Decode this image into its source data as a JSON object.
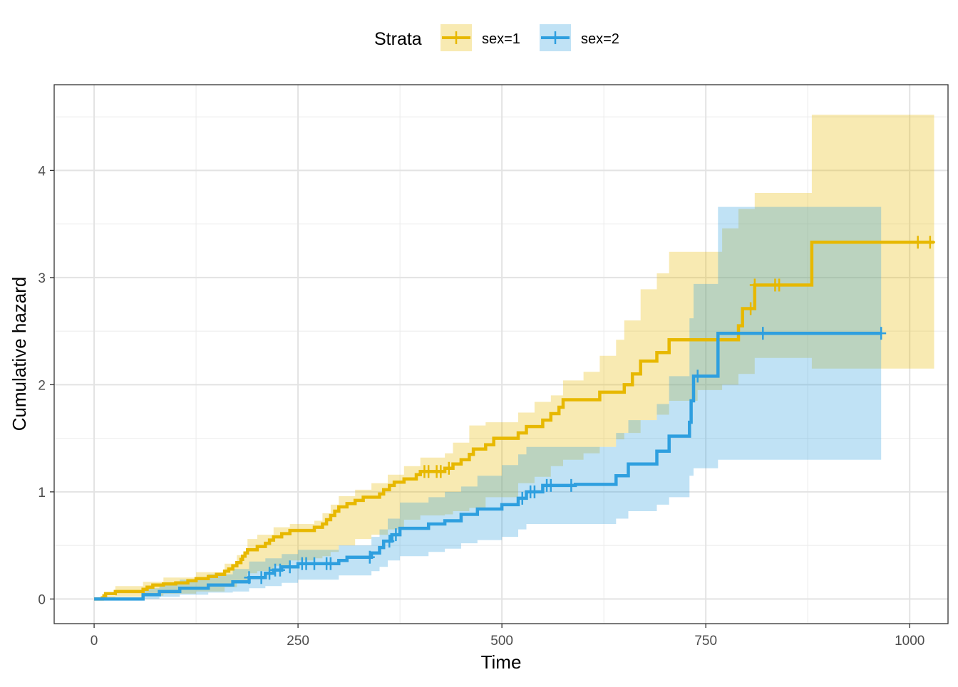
{
  "chart_data": {
    "type": "line",
    "subtype": "step-with-confidence-bands",
    "title": "",
    "xlabel": "Time",
    "ylabel": "Cumulative hazard",
    "xlim": [
      -49,
      1047
    ],
    "ylim": [
      -0.23,
      4.8
    ],
    "x_ticks": [
      0,
      250,
      500,
      750,
      1000
    ],
    "y_ticks": [
      0,
      1,
      2,
      3,
      4
    ],
    "x_tick_labels": [
      "0",
      "250",
      "500",
      "750",
      "1000"
    ],
    "y_tick_labels": [
      "0",
      "1",
      "2",
      "3",
      "4"
    ],
    "grid": true,
    "legend": {
      "title": "Strata",
      "position": "top",
      "entries": [
        "sex=1",
        "sex=2"
      ]
    },
    "series": [
      {
        "name": "sex=1",
        "color": "#E7B800",
        "band_color": "#E7B800",
        "steps": [
          [
            0,
            0
          ],
          [
            10,
            0.01
          ],
          [
            12,
            0.03
          ],
          [
            14,
            0.05
          ],
          [
            26,
            0.07
          ],
          [
            60,
            0.09
          ],
          [
            65,
            0.11
          ],
          [
            72,
            0.13
          ],
          [
            85,
            0.14
          ],
          [
            100,
            0.15
          ],
          [
            115,
            0.17
          ],
          [
            125,
            0.19
          ],
          [
            140,
            0.21
          ],
          [
            150,
            0.23
          ],
          [
            160,
            0.26
          ],
          [
            165,
            0.28
          ],
          [
            170,
            0.31
          ],
          [
            175,
            0.34
          ],
          [
            180,
            0.37
          ],
          [
            182,
            0.4
          ],
          [
            185,
            0.43
          ],
          [
            188,
            0.46
          ],
          [
            200,
            0.49
          ],
          [
            210,
            0.52
          ],
          [
            215,
            0.55
          ],
          [
            220,
            0.58
          ],
          [
            230,
            0.61
          ],
          [
            240,
            0.64
          ],
          [
            270,
            0.67
          ],
          [
            280,
            0.7
          ],
          [
            285,
            0.74
          ],
          [
            290,
            0.78
          ],
          [
            295,
            0.82
          ],
          [
            300,
            0.86
          ],
          [
            310,
            0.89
          ],
          [
            320,
            0.92
          ],
          [
            330,
            0.95
          ],
          [
            350,
            0.98
          ],
          [
            355,
            1.02
          ],
          [
            362,
            1.06
          ],
          [
            368,
            1.09
          ],
          [
            380,
            1.12
          ],
          [
            395,
            1.16
          ],
          [
            400,
            1.19
          ],
          [
            430,
            1.22
          ],
          [
            440,
            1.26
          ],
          [
            450,
            1.3
          ],
          [
            460,
            1.35
          ],
          [
            465,
            1.4
          ],
          [
            480,
            1.44
          ],
          [
            490,
            1.5
          ],
          [
            520,
            1.55
          ],
          [
            530,
            1.61
          ],
          [
            550,
            1.67
          ],
          [
            560,
            1.73
          ],
          [
            570,
            1.79
          ],
          [
            575,
            1.86
          ],
          [
            620,
            1.93
          ],
          [
            650,
            2.0
          ],
          [
            660,
            2.1
          ],
          [
            670,
            2.22
          ],
          [
            690,
            2.3
          ],
          [
            705,
            2.42
          ],
          [
            790,
            2.55
          ],
          [
            795,
            2.71
          ],
          [
            810,
            2.93
          ],
          [
            880,
            3.33
          ],
          [
            1030,
            3.33
          ]
        ],
        "band_steps": [
          [
            0,
            0,
            0
          ],
          [
            10,
            -0.01,
            0.03
          ],
          [
            26,
            0.02,
            0.12
          ],
          [
            60,
            0.03,
            0.16
          ],
          [
            85,
            0.05,
            0.2
          ],
          [
            125,
            0.07,
            0.25
          ],
          [
            160,
            0.11,
            0.33
          ],
          [
            175,
            0.15,
            0.41
          ],
          [
            188,
            0.24,
            0.56
          ],
          [
            200,
            0.26,
            0.6
          ],
          [
            220,
            0.31,
            0.67
          ],
          [
            240,
            0.36,
            0.7
          ],
          [
            270,
            0.38,
            0.73
          ],
          [
            280,
            0.4,
            0.8
          ],
          [
            290,
            0.44,
            0.88
          ],
          [
            300,
            0.5,
            0.96
          ],
          [
            320,
            0.56,
            1.02
          ],
          [
            340,
            0.6,
            1.08
          ],
          [
            360,
            0.65,
            1.16
          ],
          [
            380,
            0.74,
            1.24
          ],
          [
            400,
            0.78,
            1.32
          ],
          [
            430,
            0.79,
            1.36
          ],
          [
            440,
            0.82,
            1.46
          ],
          [
            460,
            0.85,
            1.62
          ],
          [
            480,
            0.95,
            1.65
          ],
          [
            520,
            1.08,
            1.74
          ],
          [
            540,
            1.14,
            1.84
          ],
          [
            560,
            1.24,
            1.9
          ],
          [
            575,
            1.3,
            2.04
          ],
          [
            600,
            1.36,
            2.12
          ],
          [
            620,
            1.42,
            2.27
          ],
          [
            640,
            1.49,
            2.42
          ],
          [
            650,
            1.55,
            2.6
          ],
          [
            670,
            1.67,
            2.89
          ],
          [
            690,
            1.72,
            3.04
          ],
          [
            705,
            1.85,
            3.24
          ],
          [
            740,
            1.95,
            3.24
          ],
          [
            770,
            2.0,
            3.46
          ],
          [
            790,
            2.1,
            3.64
          ],
          [
            810,
            2.25,
            3.79
          ],
          [
            880,
            2.15,
            4.52
          ],
          [
            1030,
            2.15,
            4.52
          ]
        ],
        "censor_times": [
          405,
          410,
          420,
          425,
          435,
          805,
          810,
          835,
          840,
          1010,
          1025
        ]
      },
      {
        "name": "sex=2",
        "color": "#2E9FDF",
        "band_color": "#2E9FDF",
        "steps": [
          [
            0,
            0
          ],
          [
            60,
            0.04
          ],
          [
            80,
            0.07
          ],
          [
            105,
            0.1
          ],
          [
            140,
            0.13
          ],
          [
            170,
            0.16
          ],
          [
            190,
            0.2
          ],
          [
            210,
            0.24
          ],
          [
            220,
            0.27
          ],
          [
            230,
            0.3
          ],
          [
            250,
            0.33
          ],
          [
            300,
            0.36
          ],
          [
            310,
            0.39
          ],
          [
            340,
            0.43
          ],
          [
            350,
            0.48
          ],
          [
            355,
            0.54
          ],
          [
            365,
            0.6
          ],
          [
            375,
            0.66
          ],
          [
            410,
            0.7
          ],
          [
            430,
            0.73
          ],
          [
            450,
            0.79
          ],
          [
            470,
            0.84
          ],
          [
            500,
            0.88
          ],
          [
            520,
            0.94
          ],
          [
            530,
            1.0
          ],
          [
            550,
            1.06
          ],
          [
            590,
            1.07
          ],
          [
            640,
            1.15
          ],
          [
            655,
            1.26
          ],
          [
            690,
            1.38
          ],
          [
            705,
            1.52
          ],
          [
            730,
            1.65
          ],
          [
            732,
            1.85
          ],
          [
            735,
            2.08
          ],
          [
            765,
            2.48
          ],
          [
            965,
            2.48
          ]
        ],
        "band_steps": [
          [
            0,
            0,
            0
          ],
          [
            60,
            0.0,
            0.1
          ],
          [
            80,
            0.02,
            0.14
          ],
          [
            105,
            0.04,
            0.18
          ],
          [
            140,
            0.06,
            0.23
          ],
          [
            170,
            0.07,
            0.28
          ],
          [
            190,
            0.1,
            0.35
          ],
          [
            210,
            0.12,
            0.38
          ],
          [
            230,
            0.15,
            0.42
          ],
          [
            250,
            0.18,
            0.46
          ],
          [
            300,
            0.22,
            0.5
          ],
          [
            340,
            0.26,
            0.58
          ],
          [
            350,
            0.3,
            0.65
          ],
          [
            360,
            0.36,
            0.75
          ],
          [
            375,
            0.4,
            0.9
          ],
          [
            410,
            0.44,
            0.95
          ],
          [
            430,
            0.47,
            1.0
          ],
          [
            450,
            0.52,
            1.05
          ],
          [
            470,
            0.55,
            1.15
          ],
          [
            500,
            0.58,
            1.25
          ],
          [
            520,
            0.65,
            1.35
          ],
          [
            530,
            0.7,
            1.42
          ],
          [
            560,
            0.7,
            1.42
          ],
          [
            590,
            0.7,
            1.42
          ],
          [
            640,
            0.75,
            1.55
          ],
          [
            655,
            0.82,
            1.67
          ],
          [
            690,
            0.88,
            1.82
          ],
          [
            705,
            0.95,
            2.08
          ],
          [
            730,
            1.15,
            2.62
          ],
          [
            735,
            1.22,
            2.94
          ],
          [
            765,
            1.3,
            3.66
          ],
          [
            965,
            1.3,
            3.66
          ]
        ],
        "censor_times": [
          190,
          205,
          215,
          222,
          228,
          240,
          255,
          260,
          270,
          285,
          290,
          338,
          362,
          370,
          525,
          535,
          540,
          555,
          560,
          585,
          740,
          820,
          965
        ]
      }
    ]
  }
}
